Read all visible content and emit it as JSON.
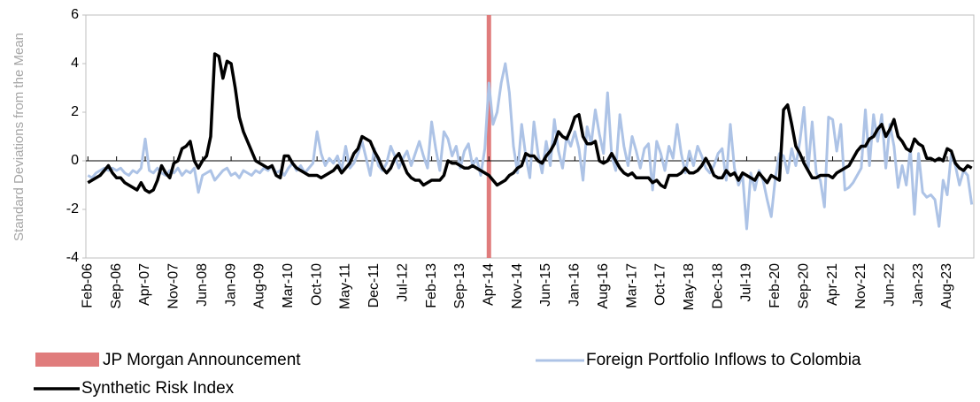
{
  "chart_data": {
    "type": "line",
    "y_label": "Standard Deviations from the Mean",
    "ylim": [
      -4,
      6
    ],
    "yticks": [
      -4,
      -2,
      0,
      2,
      4,
      6
    ],
    "categories": [
      "Feb-06",
      null,
      null,
      null,
      null,
      null,
      null,
      "Sep-06",
      null,
      null,
      null,
      null,
      null,
      null,
      "Apr-07",
      null,
      null,
      null,
      null,
      null,
      null,
      "Nov-07",
      null,
      null,
      null,
      null,
      null,
      null,
      "Jun-08",
      null,
      null,
      null,
      null,
      null,
      null,
      "Jan-09",
      null,
      null,
      null,
      null,
      null,
      null,
      "Aug-09",
      null,
      null,
      null,
      null,
      null,
      null,
      "Mar-10",
      null,
      null,
      null,
      null,
      null,
      null,
      "Oct-10",
      null,
      null,
      null,
      null,
      null,
      null,
      "May-11",
      null,
      null,
      null,
      null,
      null,
      null,
      "Dec-11",
      null,
      null,
      null,
      null,
      null,
      null,
      "Jul-12",
      null,
      null,
      null,
      null,
      null,
      null,
      "Feb-13",
      null,
      null,
      null,
      null,
      null,
      null,
      "Sep-13",
      null,
      null,
      null,
      null,
      null,
      null,
      "Apr-14",
      null,
      null,
      null,
      null,
      null,
      null,
      "Nov-14",
      null,
      null,
      null,
      null,
      null,
      null,
      "Jun-15",
      null,
      null,
      null,
      null,
      null,
      null,
      "Jan-16",
      null,
      null,
      null,
      null,
      null,
      null,
      "Aug-16",
      null,
      null,
      null,
      null,
      null,
      null,
      "Mar-17",
      null,
      null,
      null,
      null,
      null,
      null,
      "Oct-17",
      null,
      null,
      null,
      null,
      null,
      null,
      "May-18",
      null,
      null,
      null,
      null,
      null,
      null,
      "Dec-18",
      null,
      null,
      null,
      null,
      null,
      null,
      "Jul-19",
      null,
      null,
      null,
      null,
      null,
      null,
      "Feb-20",
      null,
      null,
      null,
      null,
      null,
      null,
      "Sep-20",
      null,
      null,
      null,
      null,
      null,
      null,
      "Apr-21",
      null,
      null,
      null,
      null,
      null,
      null,
      "Nov-21",
      null,
      null,
      null,
      null,
      null,
      null,
      "Jun-22",
      null,
      null,
      null,
      null,
      null,
      null,
      "Jan-23",
      null,
      null,
      null,
      null,
      null,
      null,
      "Aug-23",
      null,
      null,
      null,
      null,
      null,
      null
    ],
    "vline": {
      "name": "JP Morgan Announcement",
      "x": "Apr-14",
      "color": "#e07c7c"
    },
    "series": [
      {
        "name": "Foreign Portfolio Inflows to Colombia",
        "color": "#adc3e6",
        "values": [
          -0.6,
          -0.7,
          -0.5,
          -0.4,
          -0.3,
          -0.4,
          -0.3,
          -0.4,
          -0.3,
          -0.5,
          -0.6,
          -0.4,
          -0.5,
          -0.3,
          0.9,
          -0.4,
          -0.5,
          -0.3,
          -0.5,
          -0.6,
          -0.4,
          -0.5,
          -0.3,
          -0.6,
          -0.4,
          -0.5,
          -0.3,
          -1.3,
          -0.6,
          -0.5,
          -0.4,
          -0.8,
          -0.6,
          -0.4,
          -0.3,
          -0.6,
          -0.5,
          -0.7,
          -0.4,
          -0.5,
          -0.6,
          -0.4,
          -0.5,
          -0.3,
          -0.4,
          -0.2,
          -0.5,
          -0.4,
          -0.6,
          -0.3,
          -0.1,
          -0.4,
          -0.2,
          -0.5,
          -0.3,
          -0.1,
          1.2,
          0.3,
          -0.2,
          0.1,
          -0.1,
          0.2,
          -0.4,
          0.6,
          -0.3,
          -0.1,
          0.3,
          0.8,
          0.1,
          -0.6,
          0.5,
          -0.2,
          -0.4,
          -0.1,
          0.6,
          0.2,
          -0.3,
          0.1,
          0.4,
          -0.2,
          0.3,
          0.8,
          0.2,
          -0.3,
          1.6,
          0.5,
          -0.4,
          1.2,
          0.9,
          0.2,
          0.6,
          -0.3,
          0.4,
          0.7,
          -0.2,
          0.1,
          -0.6,
          0.5,
          3.2,
          1.5,
          2.0,
          3.2,
          4.0,
          2.8,
          0.6,
          -0.5,
          1.5,
          0.2,
          -0.7,
          1.6,
          0.3,
          -0.5,
          0.8,
          -0.2,
          1.7,
          0.4,
          -0.3,
          1.0,
          0.6,
          1.2,
          0.5,
          -0.8,
          1.4,
          0.7,
          2.1,
          1.1,
          0.3,
          2.8,
          0.2,
          -0.4,
          1.9,
          0.6,
          -0.2,
          1.0,
          0.4,
          -0.3,
          0.5,
          0.7,
          -1.2,
          0.8,
          0.3,
          -0.4,
          0.6,
          0.1,
          1.5,
          0.3,
          -0.5,
          0.4,
          -0.2,
          0.6,
          0.2,
          -0.3,
          -0.5,
          -0.2,
          0.3,
          0.5,
          -0.8,
          1.5,
          -0.3,
          -1.0,
          -0.6,
          -2.8,
          -0.5,
          -1.2,
          -0.4,
          -0.8,
          -1.6,
          -2.3,
          -0.7,
          0.3,
          0.2,
          -0.5,
          0.5,
          -0.2,
          0.8,
          2.2,
          -0.4,
          1.6,
          -0.5,
          -0.8,
          -1.9,
          1.8,
          1.7,
          0.4,
          1.5,
          -1.2,
          -1.1,
          -0.9,
          -0.6,
          -0.3,
          2.1,
          -0.2,
          1.9,
          0.8,
          1.9,
          -0.3,
          1.5,
          0.6,
          -1.1,
          -0.2,
          -1.0,
          0.5,
          -2.2,
          0.3,
          -1.3,
          -1.5,
          -1.4,
          -1.6,
          -2.7,
          -0.8,
          -1.4,
          0.3,
          -0.2,
          -1.0,
          -0.4,
          -0.6,
          -1.8
        ]
      },
      {
        "name": "Synthetic Risk Index",
        "color": "#000000",
        "values": [
          -0.9,
          -0.8,
          -0.7,
          -0.6,
          -0.4,
          -0.2,
          -0.5,
          -0.7,
          -0.7,
          -0.9,
          -1.0,
          -1.1,
          -1.2,
          -0.9,
          -1.2,
          -1.3,
          -1.2,
          -0.8,
          -0.2,
          -0.5,
          -0.7,
          -0.1,
          0.0,
          0.5,
          0.6,
          0.8,
          0.0,
          -0.3,
          0.0,
          0.2,
          1.0,
          4.4,
          4.3,
          3.4,
          4.1,
          4.0,
          3.0,
          1.8,
          1.2,
          0.8,
          0.4,
          0.0,
          -0.1,
          -0.2,
          -0.3,
          -0.2,
          -0.6,
          -0.7,
          0.2,
          0.2,
          -0.1,
          -0.3,
          -0.4,
          -0.5,
          -0.6,
          -0.6,
          -0.6,
          -0.7,
          -0.6,
          -0.5,
          -0.4,
          -0.2,
          -0.5,
          -0.3,
          -0.1,
          0.3,
          0.5,
          1.0,
          0.9,
          0.8,
          0.4,
          0.1,
          -0.3,
          -0.5,
          -0.3,
          0.1,
          0.3,
          -0.1,
          -0.5,
          -0.7,
          -0.8,
          -0.8,
          -1.0,
          -0.9,
          -0.8,
          -0.8,
          -0.8,
          -0.6,
          0.0,
          -0.1,
          -0.1,
          -0.2,
          -0.3,
          -0.3,
          -0.2,
          -0.3,
          -0.4,
          -0.5,
          -0.6,
          -0.8,
          -1.0,
          -0.9,
          -0.8,
          -0.6,
          -0.5,
          -0.3,
          -0.2,
          0.3,
          0.2,
          0.2,
          0.0,
          -0.1,
          0.2,
          0.4,
          0.7,
          1.2,
          1.0,
          0.9,
          1.3,
          1.8,
          1.9,
          1.0,
          0.7,
          0.7,
          0.8,
          0.0,
          -0.1,
          0.0,
          0.3,
          0.0,
          -0.3,
          -0.5,
          -0.6,
          -0.5,
          -0.7,
          -0.7,
          -0.7,
          -0.7,
          -0.9,
          -0.8,
          -1.0,
          -1.1,
          -0.6,
          -0.6,
          -0.6,
          -0.5,
          -0.3,
          -0.5,
          -0.5,
          -0.4,
          -0.2,
          0.1,
          -0.2,
          -0.6,
          -0.7,
          -0.7,
          -0.4,
          -0.6,
          -0.5,
          -0.8,
          -0.5,
          -0.6,
          -0.7,
          -0.8,
          -0.5,
          -0.7,
          -0.9,
          -0.6,
          -0.7,
          -0.8,
          2.1,
          2.3,
          1.5,
          0.6,
          0.3,
          -0.1,
          -0.4,
          -0.7,
          -0.7,
          -0.6,
          -0.6,
          -0.6,
          -0.7,
          -0.5,
          -0.4,
          -0.3,
          -0.2,
          0.1,
          0.4,
          0.6,
          0.6,
          0.9,
          1.0,
          1.3,
          1.5,
          1.0,
          1.3,
          1.7,
          1.0,
          0.8,
          0.5,
          0.4,
          0.9,
          0.7,
          0.6,
          0.1,
          0.1,
          0.0,
          0.1,
          0.0,
          0.5,
          0.4,
          -0.1,
          -0.3,
          -0.4,
          -0.2,
          -0.3
        ]
      }
    ]
  }
}
